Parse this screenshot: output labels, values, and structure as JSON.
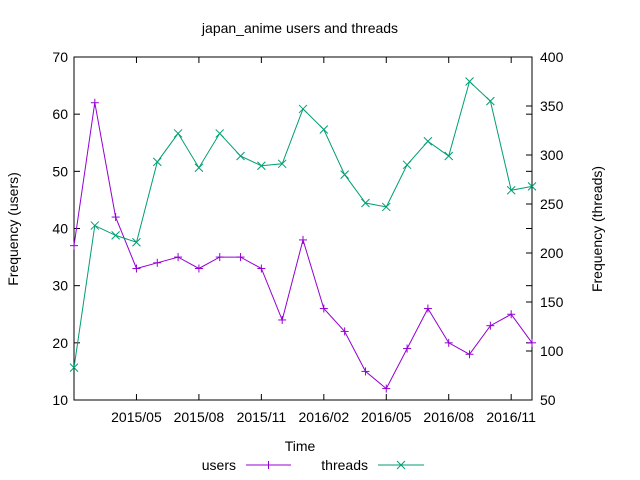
{
  "chart_data": {
    "type": "line",
    "title": "japan_anime users and threads",
    "xlabel": "Time",
    "ylabel_left": "Frequency (users)",
    "ylabel_right": "Frequency (threads)",
    "x_tick_labels": [
      "2015/05",
      "2015/08",
      "2015/11",
      "2016/02",
      "2016/05",
      "2016/08",
      "2016/11"
    ],
    "x": [
      "2015/02",
      "2015/03",
      "2015/04",
      "2015/05",
      "2015/06",
      "2015/07",
      "2015/08",
      "2015/09",
      "2015/10",
      "2015/11",
      "2015/12",
      "2016/01",
      "2016/02",
      "2016/03",
      "2016/04",
      "2016/05",
      "2016/06",
      "2016/07",
      "2016/08",
      "2016/09",
      "2016/10",
      "2016/11",
      "2016/12"
    ],
    "xlim": [
      "2015/02",
      "2016/12"
    ],
    "ylim_left": [
      10,
      70
    ],
    "yticks_left": [
      10,
      20,
      30,
      40,
      50,
      60,
      70
    ],
    "ylim_right": [
      50,
      400
    ],
    "yticks_right": [
      50,
      100,
      150,
      200,
      250,
      300,
      350,
      400
    ],
    "legend_position": "bottom-center",
    "grid": false,
    "series": [
      {
        "name": "users",
        "axis": "left",
        "color": "#9400d3",
        "marker": "plus",
        "values": [
          37,
          62,
          42,
          33,
          34,
          35,
          33,
          35,
          35,
          33,
          24,
          38,
          26,
          22,
          15,
          12,
          19,
          26,
          20,
          18,
          23,
          25,
          20
        ]
      },
      {
        "name": "threads",
        "axis": "right",
        "color": "#009e73",
        "marker": "cross",
        "values": [
          83,
          228,
          218,
          211,
          293,
          322,
          287,
          322,
          299,
          289,
          291,
          347,
          326,
          280,
          251,
          247,
          290,
          314,
          299,
          375,
          355,
          264,
          268
        ]
      }
    ]
  }
}
